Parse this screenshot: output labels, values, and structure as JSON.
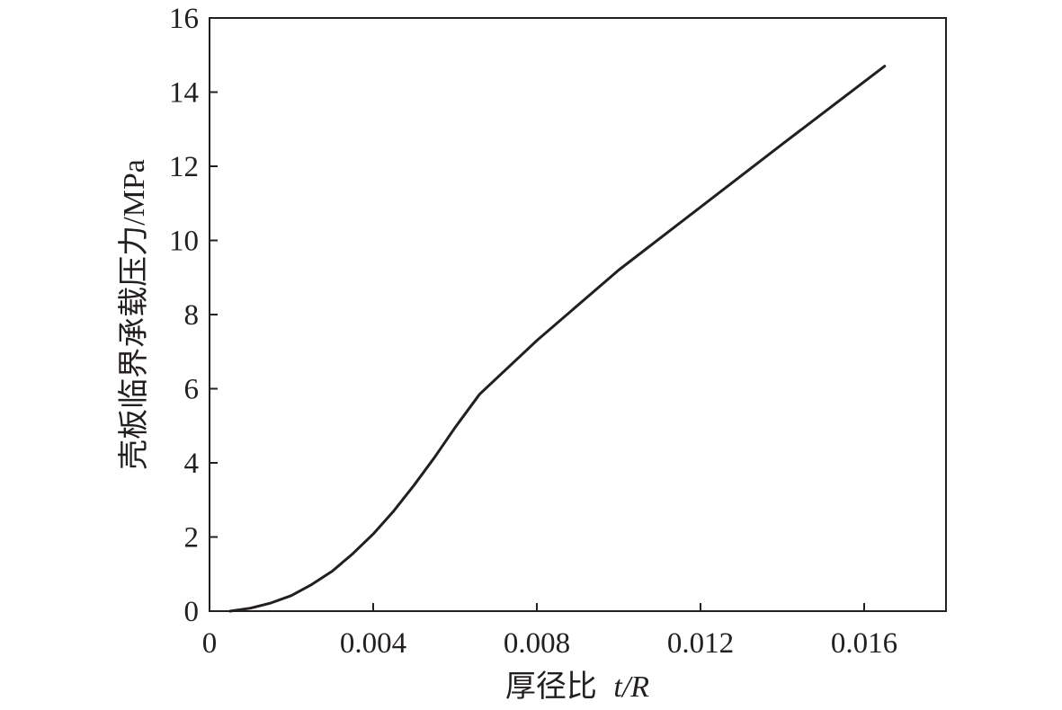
{
  "chart_data": {
    "type": "line",
    "title": "",
    "xlabel": "厚径比",
    "xlabel_var": "t/R",
    "ylabel": "壳板临界承载压力/MPa",
    "xlim": [
      0,
      0.018
    ],
    "ylim": [
      0,
      16
    ],
    "x_ticks": [
      0,
      0.004,
      0.008,
      0.012,
      0.016
    ],
    "x_tick_labels": [
      "0",
      "0.004",
      "0.008",
      "0.012",
      "0.016"
    ],
    "y_ticks": [
      0,
      2,
      4,
      6,
      8,
      10,
      12,
      14,
      16
    ],
    "y_tick_labels": [
      "0",
      "2",
      "4",
      "6",
      "8",
      "10",
      "12",
      "14",
      "16"
    ],
    "grid": false,
    "legend": "none",
    "line_color": "#231f20",
    "series": [
      {
        "x": [
          0.0005,
          0.001,
          0.0015,
          0.002,
          0.0025,
          0.003,
          0.0035,
          0.004,
          0.0045,
          0.005,
          0.0055,
          0.006,
          0.0066,
          0.008,
          0.01,
          0.012,
          0.014,
          0.0165
        ],
        "y": [
          0.0,
          0.08,
          0.22,
          0.42,
          0.72,
          1.08,
          1.55,
          2.08,
          2.7,
          3.4,
          4.15,
          4.95,
          5.85,
          7.3,
          9.2,
          10.9,
          12.6,
          14.7
        ]
      }
    ]
  }
}
